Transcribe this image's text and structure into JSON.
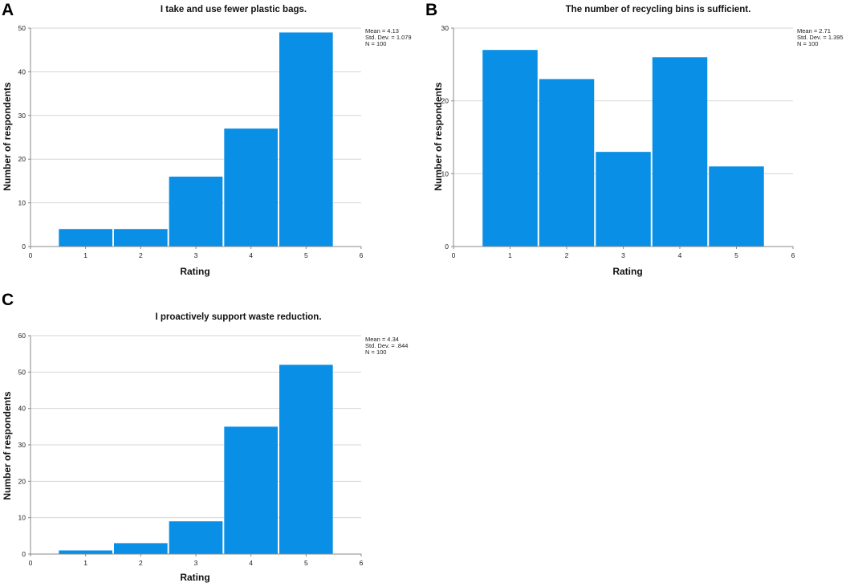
{
  "colors": {
    "bar": "#0A8FE6",
    "grid": "#d6d6d6"
  },
  "chart_data": [
    {
      "panel": "A",
      "type": "bar",
      "title": "I take and use fewer plastic bags.",
      "xlabel": "Rating",
      "ylabel": "Number of respondents",
      "categories": [
        1,
        2,
        3,
        4,
        5
      ],
      "values": [
        4,
        4,
        16,
        27,
        49
      ],
      "xticks": [
        0,
        1,
        2,
        3,
        4,
        5,
        6
      ],
      "yticks": [
        0,
        10,
        20,
        30,
        40,
        50
      ],
      "xlim": [
        0,
        6
      ],
      "ylim": [
        0,
        50
      ],
      "grid": true,
      "stats": [
        "Mean = 4.13",
        "Std. Dev. = 1.079",
        "N = 100"
      ]
    },
    {
      "panel": "B",
      "type": "bar",
      "title": "The number of recycling bins is sufficient.",
      "xlabel": "Rating",
      "ylabel": "Number of respondents",
      "categories": [
        1,
        2,
        3,
        4,
        5
      ],
      "values": [
        27,
        23,
        13,
        26,
        11
      ],
      "xticks": [
        0,
        1,
        2,
        3,
        4,
        5,
        6
      ],
      "yticks": [
        0,
        10,
        20,
        30
      ],
      "xlim": [
        0,
        6
      ],
      "ylim": [
        0,
        30
      ],
      "grid": true,
      "stats": [
        "Mean = 2.71",
        "Std. Dev. = 1.395",
        "N = 100"
      ]
    },
    {
      "panel": "C",
      "type": "bar",
      "title": "I proactively support waste reduction.",
      "xlabel": "Rating",
      "ylabel": "Number of respondents",
      "categories": [
        1,
        2,
        3,
        4,
        5
      ],
      "values": [
        1,
        3,
        9,
        35,
        52
      ],
      "xticks": [
        0,
        1,
        2,
        3,
        4,
        5,
        6
      ],
      "yticks": [
        0,
        10,
        20,
        30,
        40,
        50,
        60
      ],
      "xlim": [
        0,
        6
      ],
      "ylim": [
        0,
        60
      ],
      "grid": true,
      "stats": [
        "Mean = 4.34",
        "Std. Dev. = .844",
        "N = 100"
      ]
    }
  ]
}
